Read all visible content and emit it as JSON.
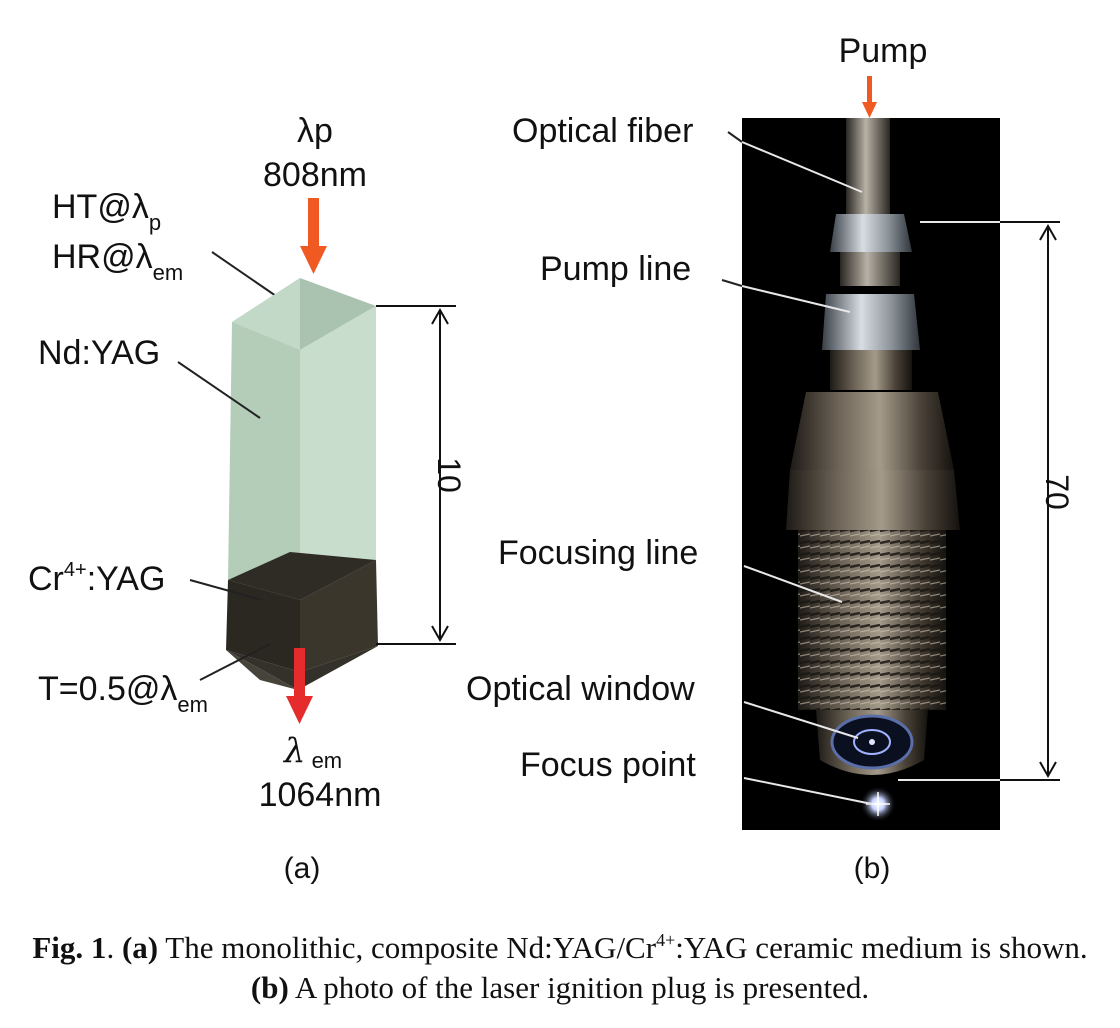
{
  "panel_a": {
    "pump_lambda": "λp",
    "pump_wavelength": "808nm",
    "ht_label": "HT@λ",
    "ht_sub": "p",
    "hr_label": "HR@λ",
    "hr_sub": "em",
    "ndyag_label": "Nd:YAG",
    "cr_prefix": "Cr",
    "cr_sup": "4+",
    "cr_suffix": ":YAG",
    "t_label": "T=0.5@λ",
    "t_sub": "em",
    "em_lambda": "λ",
    "em_sub": "em",
    "em_wavelength": "1064nm",
    "dimension": "10",
    "panel_label": "(a)"
  },
  "panel_b": {
    "pump_label": "Pump",
    "optical_fiber": "Optical fiber",
    "pump_line": "Pump line",
    "focusing_line": "Focusing line",
    "optical_window": "Optical window",
    "focus_point": "Focus point",
    "dimension": "70",
    "panel_label": "(b)"
  },
  "caption": {
    "fig_label": "Fig. 1",
    "period": ".",
    "a_label": "(a)",
    "text1": " The monolithic, composite Nd:YAG/Cr",
    "sup": "4+",
    "text2": ":YAG ceramic medium is shown.",
    "b_label": "(b)",
    "text3": " A photo of the laser ignition plug is presented."
  },
  "colors": {
    "arrow": "#f05a22",
    "emission_arrow": "#e52b2b",
    "crystal_light": "#b9d4c2",
    "crystal_dark": "#2a2a22",
    "photo_bg": "#000000"
  }
}
